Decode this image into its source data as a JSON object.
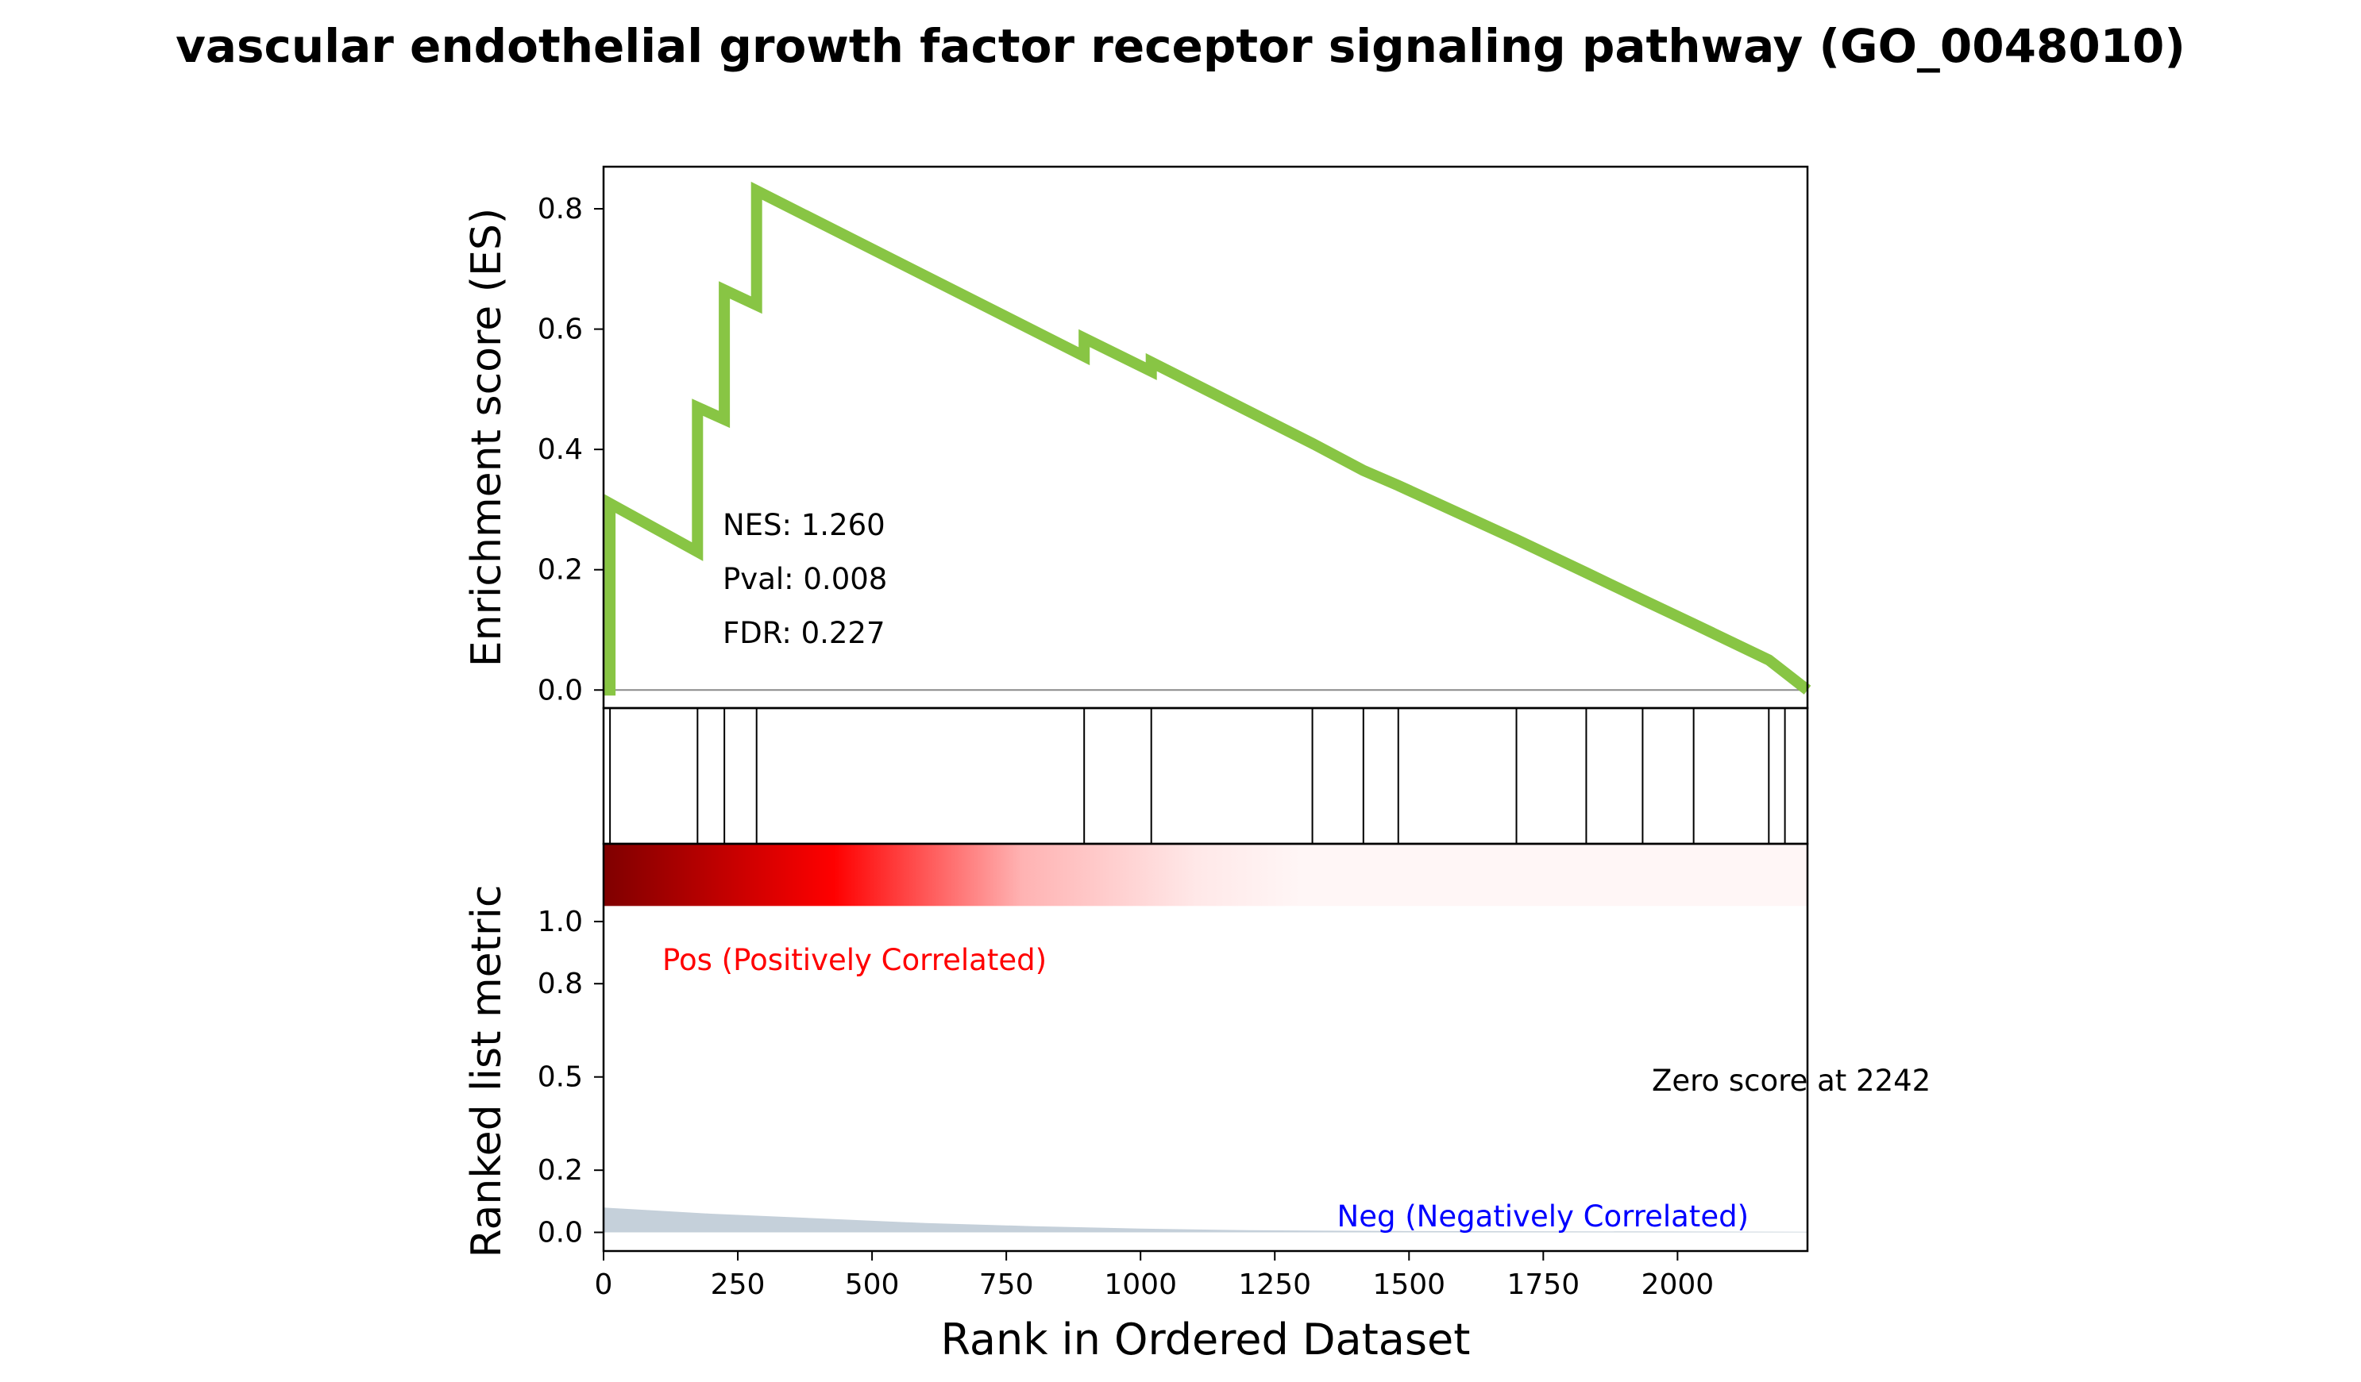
{
  "title": "vascular endothelial growth factor receptor signaling pathway (GO_0048010)",
  "colors": {
    "es_line": "#88C544",
    "pos_text": "#ff0000",
    "neg_text": "#0000ff",
    "metric_fill": "#c5d0da",
    "heat_dark": "#7f0000",
    "heat_mid": "#ff0000",
    "heat_light": "#fff6f6"
  },
  "chart_data": [
    {
      "type": "line",
      "panel": "enrichment-score",
      "ylabel": "Enrichment score (ES)",
      "xlim": [
        0,
        2242
      ],
      "ylim": [
        -0.03,
        0.87
      ],
      "yticks": [
        "0.0",
        "0.2",
        "0.4",
        "0.6",
        "0.8"
      ],
      "ytick_values": [
        0.0,
        0.2,
        0.4,
        0.6,
        0.8
      ],
      "zero_line": true,
      "points": [
        [
          0,
          0.0
        ],
        [
          12,
          0.0
        ],
        [
          12,
          0.31
        ],
        [
          175,
          0.23
        ],
        [
          175,
          0.47
        ],
        [
          225,
          0.45
        ],
        [
          225,
          0.665
        ],
        [
          285,
          0.64
        ],
        [
          285,
          0.83
        ],
        [
          895,
          0.555
        ],
        [
          895,
          0.585
        ],
        [
          1020,
          0.53
        ],
        [
          1020,
          0.545
        ],
        [
          1320,
          0.41
        ],
        [
          1415,
          0.365
        ],
        [
          1480,
          0.34
        ],
        [
          1700,
          0.25
        ],
        [
          1830,
          0.195
        ],
        [
          1935,
          0.15
        ],
        [
          2030,
          0.11
        ],
        [
          2170,
          0.05
        ],
        [
          2242,
          0.0
        ]
      ],
      "annotations": [
        {
          "text": "NES: 1.260"
        },
        {
          "text": "Pval: 0.008"
        },
        {
          "text": "FDR: 0.227"
        }
      ]
    },
    {
      "type": "hits",
      "panel": "gene-set-hits",
      "x": [
        12,
        175,
        225,
        285,
        895,
        1020,
        1320,
        1415,
        1480,
        1700,
        1830,
        1935,
        2030,
        2170,
        2200
      ]
    },
    {
      "type": "area",
      "panel": "ranked-list-metric",
      "ylabel": "Ranked list metric",
      "xlabel": "Rank in Ordered Dataset",
      "xlim": [
        0,
        2242
      ],
      "xticks": [
        "0",
        "250",
        "500",
        "750",
        "1000",
        "1250",
        "1500",
        "1750",
        "2000"
      ],
      "xtick_values": [
        0,
        250,
        500,
        750,
        1000,
        1250,
        1500,
        1750,
        2000
      ],
      "yticks": [
        "0.0",
        "0.2",
        "0.5",
        "0.8",
        "1.0"
      ],
      "ytick_values": [
        0.0,
        0.2,
        0.5,
        0.8,
        1.0
      ],
      "ylim": [
        -0.06,
        1.25
      ],
      "heatmap_band": {
        "y_from": 1.05,
        "y_to": 1.25,
        "gradient_end_rank": 1300
      },
      "metric_points": [
        [
          0,
          0.08
        ],
        [
          200,
          0.06
        ],
        [
          400,
          0.045
        ],
        [
          600,
          0.03
        ],
        [
          800,
          0.02
        ],
        [
          1000,
          0.012
        ],
        [
          1200,
          0.007
        ],
        [
          1500,
          0.004
        ],
        [
          2242,
          0.002
        ]
      ],
      "labels": {
        "pos": "Pos (Positively Correlated)",
        "neg": "Neg (Negatively Correlated)",
        "zero": "Zero score at 2242"
      }
    }
  ]
}
